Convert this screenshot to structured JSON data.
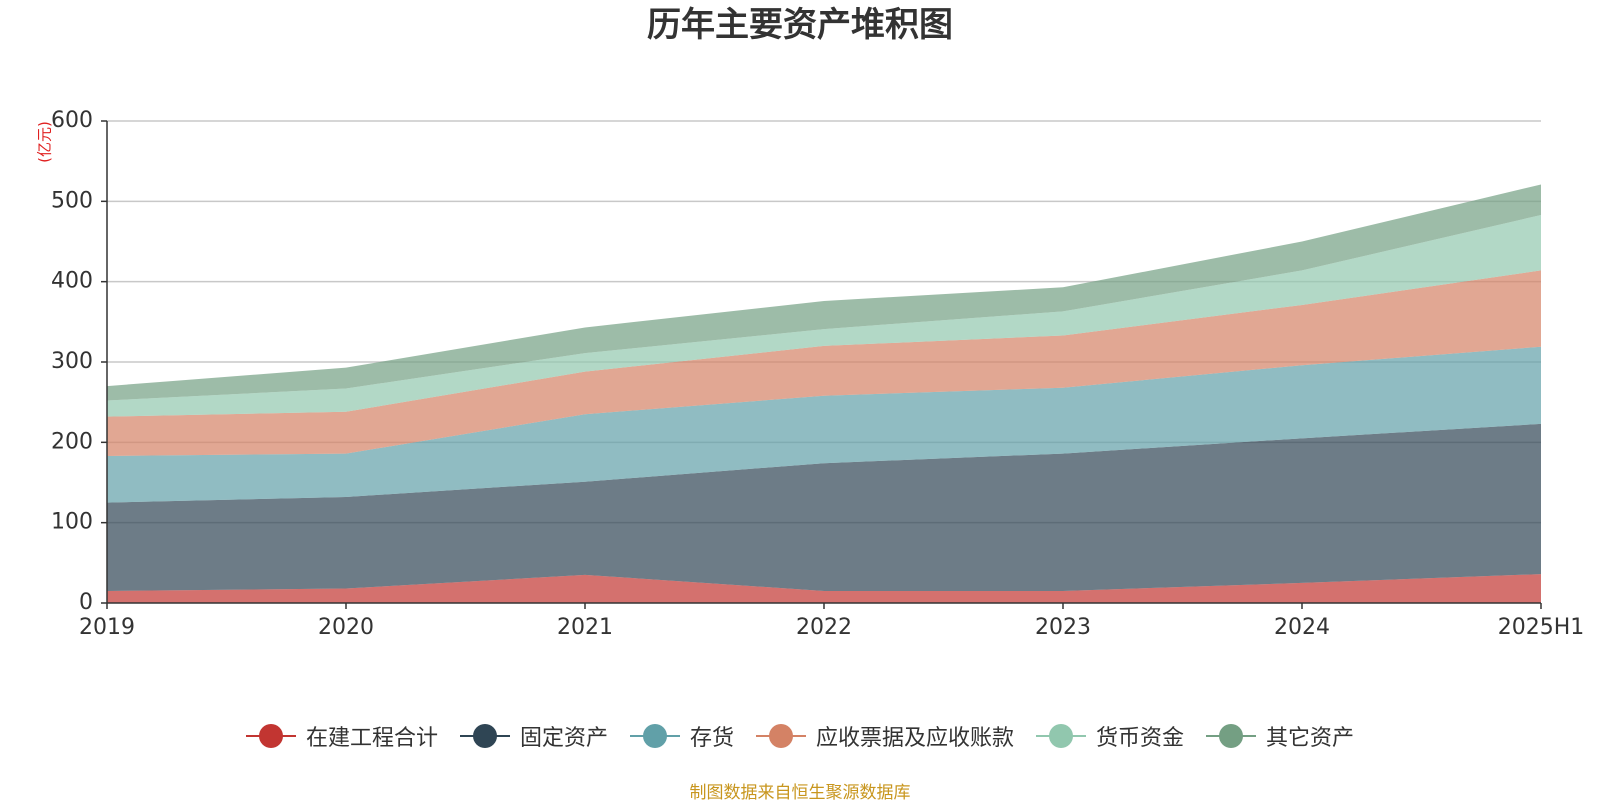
{
  "chart_data": {
    "type": "area",
    "stacked": true,
    "title": "历年主要资产堆积图",
    "unit": "(亿元)",
    "categories": [
      "2019",
      "2020",
      "2021",
      "2022",
      "2023",
      "2024",
      "2025H1"
    ],
    "ylim": [
      0,
      600
    ],
    "yticks": [
      0,
      100,
      200,
      300,
      400,
      500,
      600
    ],
    "grid": true,
    "legend_position": "bottom",
    "series": [
      {
        "name": "在建工程合计",
        "color": "#c23531",
        "values": [
          15,
          18,
          35,
          15,
          15,
          25,
          36
        ]
      },
      {
        "name": "固定资产",
        "color": "#2f4554",
        "values": [
          110,
          114,
          116,
          159,
          171,
          180,
          187
        ]
      },
      {
        "name": "存货",
        "color": "#61a0a8",
        "values": [
          58,
          54,
          84,
          84,
          82,
          91,
          96
        ]
      },
      {
        "name": "应收票据及应收账款",
        "color": "#d48265",
        "values": [
          49,
          52,
          53,
          62,
          65,
          75,
          95
        ]
      },
      {
        "name": "货币资金",
        "color": "#91c7ae",
        "values": [
          20,
          29,
          23,
          21,
          30,
          43,
          69
        ]
      },
      {
        "name": "其它资产",
        "color": "#749f83",
        "values": [
          18,
          26,
          32,
          35,
          30,
          36,
          38
        ]
      }
    ]
  },
  "source_note": "制图数据来自恒生聚源数据库"
}
